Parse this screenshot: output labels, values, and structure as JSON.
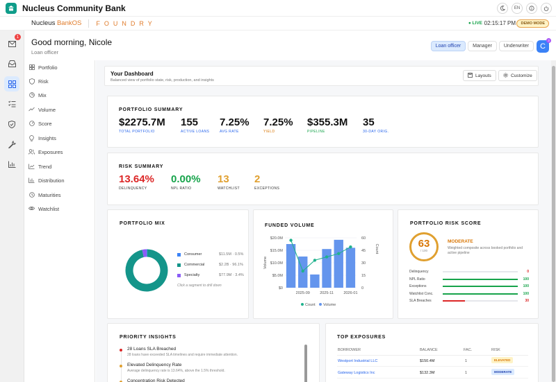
{
  "app": {
    "title": "Nucleus Community Bank"
  },
  "topbar": {
    "lang": "EN"
  },
  "subbar": {
    "brand_a": "Nucleus ",
    "brand_b": "BankOS",
    "foundry": "FOUNDRY",
    "live": "● LIVE",
    "clock": "02:15:17 PM",
    "demo": "DEMO MODE"
  },
  "rail": {
    "mail_badge": "1"
  },
  "header": {
    "greeting": "Good morning, Nicole",
    "role": "Loan officer",
    "roles": [
      "Loan officer",
      "Manager",
      "Underwriter"
    ],
    "avatar": "C",
    "avatar_badge": "3"
  },
  "sidebar": {
    "items": [
      "Portfolio",
      "Risk",
      "Mix",
      "Volume",
      "Score",
      "Insights",
      "Exposures",
      "Trend",
      "Distribution",
      "Maturities",
      "Watchlist"
    ]
  },
  "dashboard": {
    "title": "Your Dashboard",
    "subtitle": "Balanced view of portfolio state, risk, production, and insights",
    "layouts": "Layouts",
    "customize": "Customize"
  },
  "portfolio_summary": {
    "title": "PORTFOLIO SUMMARY",
    "kpis": [
      {
        "value": "$2275.7M",
        "label": "TOTAL PORTFOLIO",
        "color": "#2563eb"
      },
      {
        "value": "155",
        "label": "ACTIVE LOANS",
        "color": "#2563eb"
      },
      {
        "value": "7.25%",
        "label": "AVG RATE",
        "color": "#2563eb"
      },
      {
        "value": "7.25%",
        "label": "YIELD",
        "color": "#d97706"
      },
      {
        "value": "$355.3M",
        "label": "PIPELINE",
        "color": "#16a34a"
      },
      {
        "value": "35",
        "label": "30-DAY ORIG.",
        "color": "#2563eb"
      }
    ]
  },
  "risk_summary": {
    "title": "RISK SUMMARY",
    "kpis": [
      {
        "value": "13.64%",
        "label": "DELINQUENCY",
        "color": "#dc2626"
      },
      {
        "value": "0.00%",
        "label": "NPL RATIO",
        "color": "#16a34a"
      },
      {
        "value": "13",
        "label": "WATCHLIST",
        "color": "#e0a030"
      },
      {
        "value": "2",
        "label": "EXCEPTIONS",
        "color": "#e0a030"
      }
    ]
  },
  "portfolio_mix": {
    "title": "PORTFOLIO MIX",
    "segments": [
      {
        "name": "Consumer",
        "value": "$11.5M · 0.5%",
        "share": 0.5,
        "color": "#3b82f6"
      },
      {
        "name": "Commercial",
        "value": "$2.2B · 96.1%",
        "share": 96.1,
        "color": "#14958a"
      },
      {
        "name": "Specialty",
        "value": "$77.9M · 3.4%",
        "share": 3.4,
        "color": "#8b5cf6"
      }
    ],
    "hint": "Click a segment to drill down"
  },
  "chart_data": {
    "type": "bar",
    "title": "FUNDED VOLUME",
    "x_ticks": [
      "2025-09",
      "2025-11",
      "2026-01"
    ],
    "categories": [
      "2025-08",
      "2025-09",
      "2025-10",
      "2025-11",
      "2025-12",
      "2026-01"
    ],
    "y_left_label": "Volume",
    "y_right_label": "Count",
    "y_left_ticks": [
      "$0",
      "$5.0M",
      "$10.0M",
      "$15.0M",
      "$20.0M"
    ],
    "y_right_ticks": [
      "0",
      "15",
      "30",
      "45",
      "60"
    ],
    "ylim_left": [
      0,
      20
    ],
    "ylim_right": [
      0,
      60
    ],
    "series": [
      {
        "name": "Volume",
        "type": "bar",
        "unit": "$M",
        "values": [
          17.5,
          12.5,
          5.3,
          15.5,
          19.2,
          16.0
        ],
        "color": "#6495ed"
      },
      {
        "name": "Count",
        "type": "line",
        "values": [
          57,
          20,
          33,
          37,
          41,
          49
        ],
        "color": "#20b28d"
      }
    ],
    "legend": [
      "Count",
      "Volume"
    ]
  },
  "risk_score": {
    "title": "PORTFOLIO RISK SCORE",
    "score": "63",
    "of": "/ 100",
    "level": "MODERATE",
    "desc": "Weighted composite across booked portfolio and active pipeline",
    "rows": [
      {
        "label": "Delinquency",
        "value": 0,
        "text": "0",
        "color": "#dc2626"
      },
      {
        "label": "NPL Ratio",
        "value": 100,
        "text": "100",
        "color": "#16a34a"
      },
      {
        "label": "Exceptions",
        "value": 100,
        "text": "100",
        "color": "#16a34a"
      },
      {
        "label": "Watchlist Conc.",
        "value": 100,
        "text": "100",
        "color": "#16a34a"
      },
      {
        "label": "SLA Breaches",
        "value": 30,
        "text": "30",
        "color": "#dc2626"
      }
    ]
  },
  "insights": {
    "title": "PRIORITY INSIGHTS",
    "items": [
      {
        "title": "28 Loans SLA Breached",
        "sub": "28 loans have exceeded SLA timelines and require immediate attention.",
        "color": "#dc2626"
      },
      {
        "title": "Elevated Delinquency Rate",
        "sub": "Average delinquency rate is 13.64%, above the 1.5% threshold.",
        "color": "#e0a030"
      },
      {
        "title": "Concentration Risk Detected",
        "sub": "",
        "color": "#e0a030"
      }
    ]
  },
  "exposures": {
    "title": "TOP EXPOSURES",
    "headers": [
      "BORROWER",
      "BALANCE",
      "FAC.",
      "RISK"
    ],
    "rows": [
      {
        "borrower": "Westport Industrial LLC",
        "balance": "$150.4M",
        "fac": "1",
        "risk": "ELEVATED",
        "risk_color": "#d97706",
        "risk_bg": "#fef3c7"
      },
      {
        "borrower": "Gateway Logistics Inc",
        "balance": "$132.3M",
        "fac": "1",
        "risk": "MODERATE",
        "risk_color": "#1e40af",
        "risk_bg": "#dbeafe"
      }
    ]
  }
}
